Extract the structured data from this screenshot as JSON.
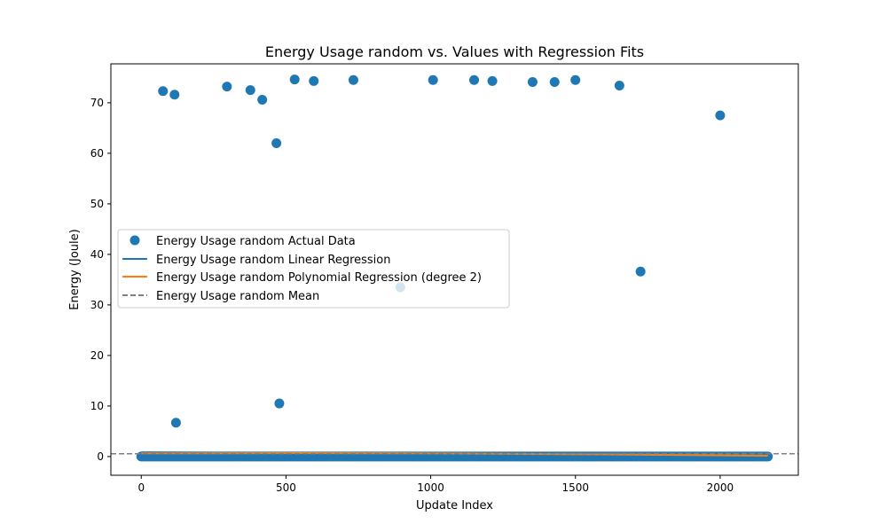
{
  "chart_data": {
    "type": "scatter",
    "title": "Energy Usage random vs. Values with Regression Fits",
    "xlabel": "Update Index",
    "ylabel": "Energy (Joule)",
    "xlim": [
      -105,
      2270
    ],
    "ylim": [
      -3.7,
      77.7
    ],
    "xticks": [
      0,
      500,
      1000,
      1500,
      2000
    ],
    "yticks": [
      0,
      10,
      20,
      30,
      40,
      50,
      60,
      70
    ],
    "legend_position": "center-left",
    "legend": [
      {
        "label": "Energy Usage random Actual Data",
        "kind": "marker",
        "color": "#1f77b4"
      },
      {
        "label": "Energy Usage random Linear Regression",
        "kind": "line",
        "color": "#1f77b4"
      },
      {
        "label": "Energy Usage random Polynomial Regression (degree 2)",
        "kind": "line",
        "color": "#ff7f0e"
      },
      {
        "label": "Energy Usage random Mean",
        "kind": "dashed",
        "color": "#808080"
      }
    ],
    "baseline_series": {
      "x_start": 0,
      "x_end": 2165,
      "y": 0.0
    },
    "outliers": [
      {
        "x": 75,
        "y": 72.3
      },
      {
        "x": 115,
        "y": 71.6
      },
      {
        "x": 120,
        "y": 6.7
      },
      {
        "x": 296,
        "y": 73.2
      },
      {
        "x": 377,
        "y": 72.5
      },
      {
        "x": 418,
        "y": 70.6
      },
      {
        "x": 467,
        "y": 62.0
      },
      {
        "x": 477,
        "y": 10.5
      },
      {
        "x": 530,
        "y": 74.6
      },
      {
        "x": 596,
        "y": 74.3
      },
      {
        "x": 733,
        "y": 74.5
      },
      {
        "x": 895,
        "y": 33.5
      },
      {
        "x": 1008,
        "y": 74.5
      },
      {
        "x": 1150,
        "y": 74.5
      },
      {
        "x": 1213,
        "y": 74.3
      },
      {
        "x": 1352,
        "y": 74.1
      },
      {
        "x": 1428,
        "y": 74.1
      },
      {
        "x": 1500,
        "y": 74.5
      },
      {
        "x": 1652,
        "y": 73.4
      },
      {
        "x": 1725,
        "y": 36.6
      },
      {
        "x": 2000,
        "y": 67.5
      }
    ],
    "linear_regression": {
      "x": [
        0,
        2165
      ],
      "y": [
        0.85,
        0.35
      ]
    },
    "polynomial_regression": {
      "x": [
        0,
        541,
        1082,
        1623,
        2165
      ],
      "y": [
        0.62,
        0.68,
        0.6,
        0.42,
        0.15
      ]
    },
    "mean": 0.55,
    "colors": {
      "data": "#1f77b4",
      "linear": "#1f77b4",
      "poly": "#ff7f0e",
      "mean": "#808080"
    }
  }
}
